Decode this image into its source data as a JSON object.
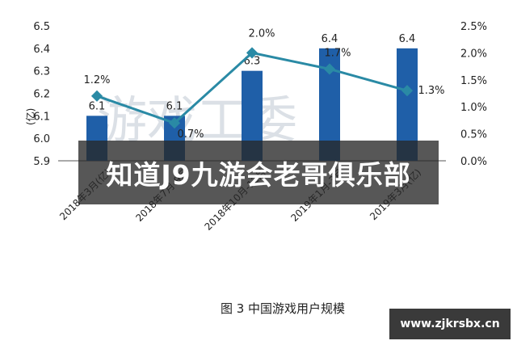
{
  "chart_data": {
    "type": "bar+line",
    "categories": [
      "2018年3月",
      "2018年7月",
      "2018年10月",
      "2019年1月",
      "2019年3月"
    ],
    "category_labels": [
      "2018年3月(亿)",
      "2018年7月-9月",
      "2018年10月-12月",
      "2019年1月-3月",
      "2019年3月(亿)"
    ],
    "bars": {
      "values": [
        6.1,
        6.1,
        6.3,
        6.4,
        6.4
      ],
      "color": "#1f5fa8",
      "labels": [
        "6.1",
        "6.1",
        "6.3",
        "6.4",
        "6.4"
      ]
    },
    "line": {
      "values": [
        1.2,
        0.7,
        2.0,
        1.7,
        1.3
      ],
      "color": "#2a8aa5",
      "labels": [
        "1.2%",
        "0.7%",
        "2.0%",
        "1.7%",
        "1.3%"
      ]
    },
    "left_axis": {
      "label": "(亿)",
      "ylim": [
        5.9,
        6.5
      ],
      "ticks": [
        "6.5",
        "6.4",
        "6.3",
        "6.2",
        "6.1",
        "6.0",
        "5.9"
      ]
    },
    "right_axis": {
      "ylim": [
        0.0,
        2.5
      ],
      "ticks": [
        "2.5%",
        "2.0%",
        "1.5%",
        "1.0%",
        "0.5%",
        "0.0%"
      ]
    },
    "grid": false
  },
  "caption": "图 3  中国游戏用户规模",
  "overlay": {
    "banner_text": "知道J9九游会老哥俱乐部",
    "site_text": "www.zjkrsbx.cn",
    "watermark_text": "游戏工委"
  }
}
